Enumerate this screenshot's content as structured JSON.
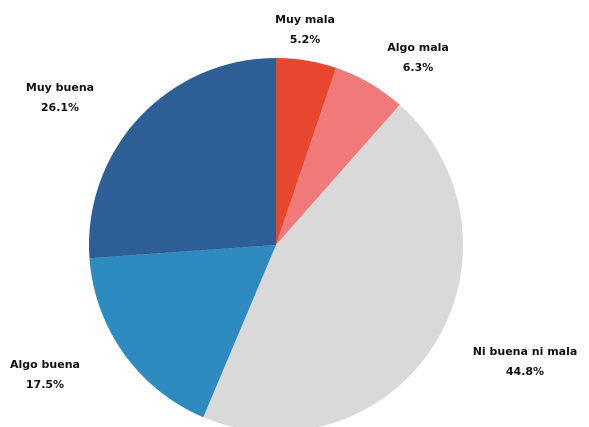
{
  "chart_data": {
    "type": "pie",
    "categories": [
      "Muy mala",
      "Algo mala",
      "Ni buena ni mala",
      "Algo buena",
      "Muy buena"
    ],
    "values": [
      5.2,
      6.3,
      44.8,
      17.5,
      26.1
    ],
    "value_labels": [
      "5.2%",
      "6.3%",
      "44.8%",
      "17.5%",
      "26.1%"
    ],
    "colors": [
      "#e8472f",
      "#f07a7a",
      "#d9d9d9",
      "#2e8bbf",
      "#2e5e96"
    ]
  }
}
